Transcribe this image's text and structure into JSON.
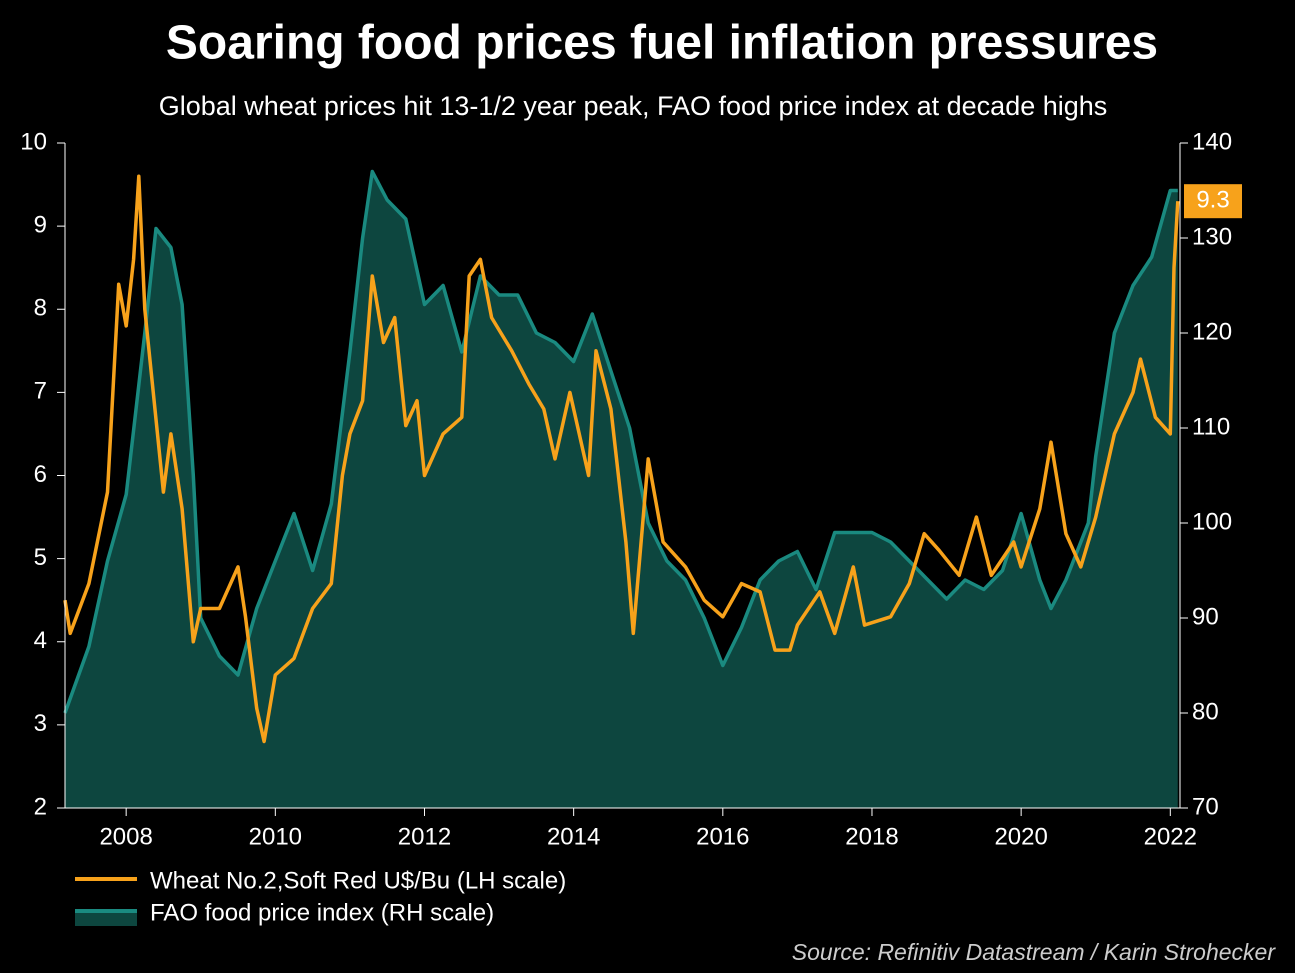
{
  "chart_data": {
    "type": "line",
    "title": "Soaring food prices fuel inflation pressures",
    "subtitle": "Global wheat prices hit 13-1/2 year peak, FAO food price index at decade highs",
    "source": "Source: Refinitiv Datastream / Karin Strohecker",
    "xlim": [
      2007.18,
      2022.13
    ],
    "xticks": [
      2008,
      2010,
      2012,
      2014,
      2016,
      2018,
      2020,
      2022
    ],
    "ylim": [
      2,
      10
    ],
    "yticks": [
      2,
      3,
      4,
      5,
      6,
      7,
      8,
      9,
      10
    ],
    "y2lim": [
      70,
      140
    ],
    "y2ticks": [
      70,
      80,
      90,
      100,
      110,
      120,
      130,
      140
    ],
    "series": [
      {
        "name": "FAO food price index (RH scale)",
        "color": "#1a8a80",
        "fill": "#0d463f",
        "axis": "y2",
        "x": [
          2007.18,
          2007.5,
          2007.75,
          2008.0,
          2008.25,
          2008.4,
          2008.6,
          2008.75,
          2008.9,
          2009.0,
          2009.25,
          2009.5,
          2009.75,
          2010.0,
          2010.25,
          2010.5,
          2010.75,
          2011.0,
          2011.17,
          2011.3,
          2011.5,
          2011.75,
          2012.0,
          2012.25,
          2012.5,
          2012.75,
          2013.0,
          2013.25,
          2013.5,
          2013.75,
          2014.0,
          2014.25,
          2014.5,
          2014.75,
          2015.0,
          2015.25,
          2015.5,
          2015.75,
          2016.0,
          2016.25,
          2016.5,
          2016.75,
          2017.0,
          2017.25,
          2017.5,
          2017.75,
          2018.0,
          2018.25,
          2018.5,
          2018.75,
          2019.0,
          2019.25,
          2019.5,
          2019.75,
          2020.0,
          2020.25,
          2020.4,
          2020.6,
          2020.9,
          2021.0,
          2021.25,
          2021.5,
          2021.75,
          2022.0,
          2022.1
        ],
        "values": [
          80,
          87,
          96,
          103,
          120,
          131,
          129,
          123,
          105,
          90,
          86,
          84,
          91,
          96,
          101,
          95,
          102,
          118,
          130,
          137,
          134,
          132,
          123,
          125,
          118,
          126,
          124,
          124,
          120,
          119,
          117,
          122,
          116,
          110,
          100,
          96,
          94,
          90,
          85,
          89,
          94,
          96,
          97,
          93,
          99,
          99,
          99,
          98,
          96,
          94,
          92,
          94,
          93,
          95,
          101,
          94,
          91,
          94,
          100,
          107,
          120,
          125,
          128,
          135,
          135
        ]
      },
      {
        "name": "Wheat No.2,Soft Red U$/Bu (LH scale)",
        "color": "#f7a21b",
        "x": [
          2007.18,
          2007.25,
          2007.5,
          2007.75,
          2007.9,
          2008.0,
          2008.1,
          2008.17,
          2008.25,
          2008.5,
          2008.6,
          2008.75,
          2008.9,
          2009.0,
          2009.25,
          2009.5,
          2009.6,
          2009.75,
          2009.85,
          2010.0,
          2010.25,
          2010.5,
          2010.75,
          2010.9,
          2011.0,
          2011.17,
          2011.3,
          2011.45,
          2011.6,
          2011.75,
          2011.9,
          2012.0,
          2012.25,
          2012.5,
          2012.6,
          2012.75,
          2012.9,
          2013.17,
          2013.4,
          2013.6,
          2013.75,
          2013.95,
          2014.2,
          2014.3,
          2014.5,
          2014.7,
          2014.8,
          2015.0,
          2015.2,
          2015.5,
          2015.75,
          2016.0,
          2016.25,
          2016.5,
          2016.7,
          2016.9,
          2017.0,
          2017.3,
          2017.5,
          2017.75,
          2017.9,
          2018.25,
          2018.5,
          2018.7,
          2018.9,
          2019.17,
          2019.4,
          2019.6,
          2019.9,
          2020.0,
          2020.25,
          2020.4,
          2020.6,
          2020.8,
          2021.0,
          2021.25,
          2021.5,
          2021.6,
          2021.8,
          2022.0,
          2022.05,
          2022.1
        ],
        "values": [
          4.5,
          4.1,
          4.7,
          5.8,
          8.3,
          7.8,
          8.6,
          9.6,
          8.0,
          5.8,
          6.5,
          5.6,
          4.0,
          4.4,
          4.4,
          4.9,
          4.3,
          3.2,
          2.8,
          3.6,
          3.8,
          4.4,
          4.7,
          6.0,
          6.5,
          6.9,
          8.4,
          7.6,
          7.9,
          6.6,
          6.9,
          6.0,
          6.5,
          6.7,
          8.4,
          8.6,
          7.9,
          7.5,
          7.1,
          6.8,
          6.2,
          7.0,
          6.0,
          7.5,
          6.8,
          5.2,
          4.1,
          6.2,
          5.2,
          4.9,
          4.5,
          4.3,
          4.7,
          4.6,
          3.9,
          3.9,
          4.2,
          4.6,
          4.1,
          4.9,
          4.2,
          4.3,
          4.7,
          5.3,
          5.1,
          4.8,
          5.5,
          4.8,
          5.2,
          4.9,
          5.6,
          6.4,
          5.3,
          4.9,
          5.5,
          6.5,
          7.0,
          7.4,
          6.7,
          6.5,
          8.5,
          9.3
        ]
      }
    ]
  }
}
